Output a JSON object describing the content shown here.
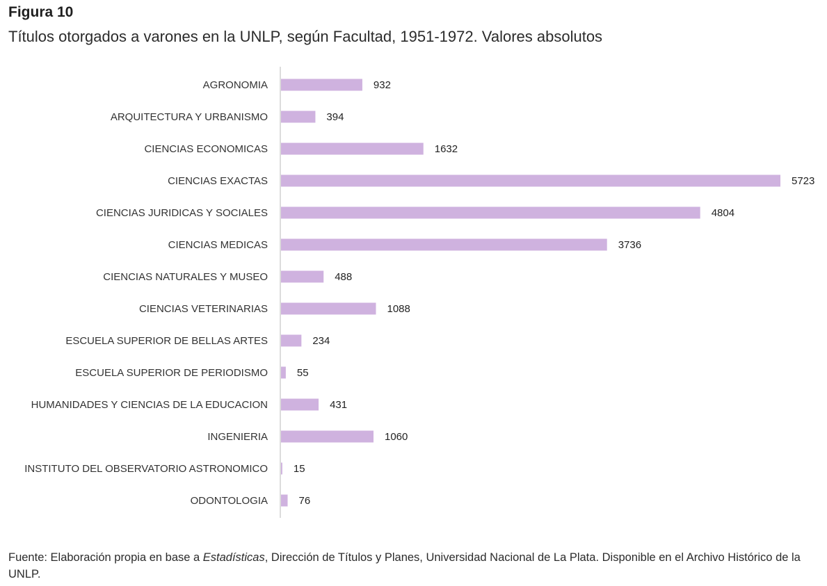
{
  "figure_label": "Figura 10",
  "title": "Títulos otorgados a varones en la UNLP, según Facultad, 1951-1972. Valores absolutos",
  "source": {
    "prefix": "Fuente: Elaboración propia en base a ",
    "italic": "Estadísticas",
    "suffix": ", Dirección de Títulos y Planes, Universidad Nacional de La Plata. Disponible en el Archivo Histórico de la UNLP."
  },
  "colors": {
    "bar": "#cfb2df",
    "axis": "#d0d0d0"
  },
  "chart_data": {
    "type": "bar",
    "orientation": "horizontal",
    "categories": [
      "AGRONOMIA",
      "ARQUITECTURA Y URBANISMO",
      "CIENCIAS ECONOMICAS",
      "CIENCIAS EXACTAS",
      "CIENCIAS JURIDICAS Y SOCIALES",
      "CIENCIAS MEDICAS",
      "CIENCIAS NATURALES Y MUSEO",
      "CIENCIAS VETERINARIAS",
      "ESCUELA SUPERIOR DE BELLAS ARTES",
      "ESCUELA SUPERIOR DE PERIODISMO",
      "HUMANIDADES Y CIENCIAS DE LA EDUCACION",
      "INGENIERIA",
      "INSTITUTO DEL OBSERVATORIO ASTRONOMICO",
      "ODONTOLOGIA"
    ],
    "values": [
      932,
      394,
      1632,
      5723,
      4804,
      3736,
      488,
      1088,
      234,
      55,
      431,
      1060,
      15,
      76
    ],
    "data_labels": true,
    "grid": false,
    "legend": "none"
  }
}
